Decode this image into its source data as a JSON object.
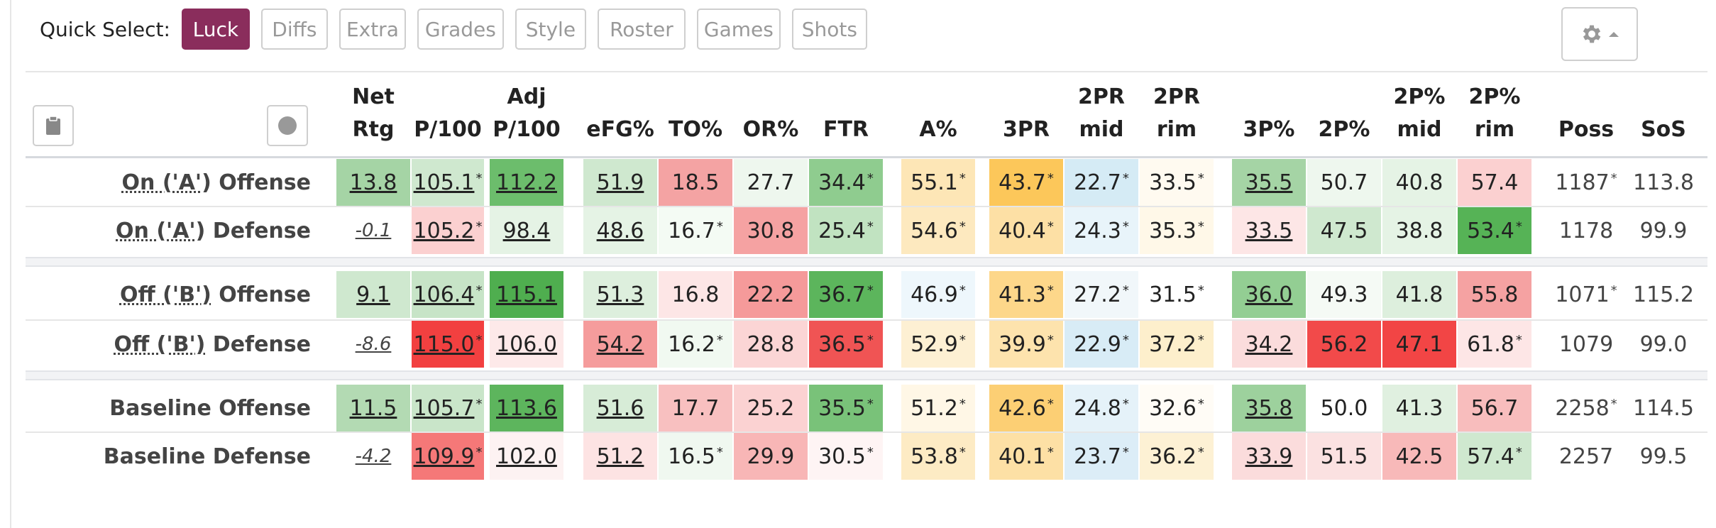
{
  "toolbar": {
    "label": "Quick Select:",
    "buttons": [
      {
        "label": "Luck",
        "active": true
      },
      {
        "label": "Diffs",
        "active": false
      },
      {
        "label": "Extra",
        "active": false
      },
      {
        "label": "Grades",
        "active": false
      },
      {
        "label": "Style",
        "active": false
      },
      {
        "label": "Roster",
        "active": false
      },
      {
        "label": "Games",
        "active": false
      },
      {
        "label": "Shots",
        "active": false
      }
    ]
  },
  "columns": [
    {
      "l1": "Net",
      "l2": "Rtg"
    },
    {
      "l1": "",
      "l2": "P/100"
    },
    {
      "l1": "Adj",
      "l2": "P/100"
    },
    {
      "l1": "",
      "l2": "eFG%"
    },
    {
      "l1": "",
      "l2": "TO%"
    },
    {
      "l1": "",
      "l2": "OR%"
    },
    {
      "l1": "",
      "l2": "FTR"
    },
    {
      "l1": "",
      "l2": "A%"
    },
    {
      "l1": "",
      "l2": "3PR"
    },
    {
      "l1": "2PR",
      "l2": "mid"
    },
    {
      "l1": "2PR",
      "l2": "rim"
    },
    {
      "l1": "",
      "l2": "3P%"
    },
    {
      "l1": "",
      "l2": "2P%"
    },
    {
      "l1": "2P%",
      "l2": "mid"
    },
    {
      "l1": "2P%",
      "l2": "rim"
    },
    {
      "l1": "",
      "l2": "Poss"
    },
    {
      "l1": "",
      "l2": "SoS"
    }
  ],
  "rows": [
    {
      "label": "On ('A') Offense",
      "label_prefix": "On ('A')",
      "label_suffix": " Offense",
      "cells": [
        {
          "v": "13.8",
          "bg": "#a5d4a5",
          "s": "u"
        },
        {
          "v": "105.1",
          "bg": "#cfe8cf",
          "s": "u",
          "star": true
        },
        {
          "v": "112.2",
          "bg": "#6cbd6c",
          "s": "u"
        },
        {
          "v": "51.9",
          "bg": "#cfe8cf",
          "s": "u"
        },
        {
          "v": "18.5",
          "bg": "#f4a3a3",
          "s": ""
        },
        {
          "v": "27.7",
          "bg": "#eef7ee",
          "s": ""
        },
        {
          "v": "34.4",
          "bg": "#8fcc8f",
          "s": "",
          "star": true
        },
        {
          "v": "55.1",
          "bg": "#fde6b6",
          "s": "",
          "star": true
        },
        {
          "v": "43.7",
          "bg": "#fcc75a",
          "s": "",
          "star": true
        },
        {
          "v": "22.7",
          "bg": "#d5ebf5",
          "s": "",
          "star": true
        },
        {
          "v": "33.5",
          "bg": "#fffaf0",
          "s": "",
          "star": true
        },
        {
          "v": "35.5",
          "bg": "#a5d4a5",
          "s": "u"
        },
        {
          "v": "50.7",
          "bg": "#eef7ee",
          "s": ""
        },
        {
          "v": "40.8",
          "bg": "#e5f3e5",
          "s": ""
        },
        {
          "v": "57.4",
          "bg": "#fbd0d0",
          "s": ""
        },
        {
          "v": "1187",
          "bg": "",
          "s": "plain",
          "star": true
        },
        {
          "v": "113.8",
          "bg": "",
          "s": "plain"
        }
      ]
    },
    {
      "label": "On ('A') Defense",
      "label_prefix": "On ('A')",
      "label_suffix": " Defense",
      "cells": [
        {
          "v": "-0.1",
          "bg": "",
          "s": "i"
        },
        {
          "v": "105.2",
          "bg": "#fbd0d0",
          "s": "u",
          "star": true
        },
        {
          "v": "98.4",
          "bg": "#e5f3e5",
          "s": "u"
        },
        {
          "v": "48.6",
          "bg": "#e5f3e5",
          "s": "u"
        },
        {
          "v": "16.7",
          "bg": "#f4fbf4",
          "s": "",
          "star": true
        },
        {
          "v": "30.8",
          "bg": "#f5a2a2",
          "s": ""
        },
        {
          "v": "25.4",
          "bg": "#c1e3c1",
          "s": "",
          "star": true
        },
        {
          "v": "54.6",
          "bg": "#fde9bf",
          "s": "",
          "star": true
        },
        {
          "v": "40.4",
          "bg": "#fde0a5",
          "s": "",
          "star": true
        },
        {
          "v": "24.3",
          "bg": "#e8f4fa",
          "s": "",
          "star": true
        },
        {
          "v": "35.3",
          "bg": "#fff8e8",
          "s": "",
          "star": true
        },
        {
          "v": "33.5",
          "bg": "#fde6e6",
          "s": "u"
        },
        {
          "v": "47.5",
          "bg": "#cfe8cf",
          "s": ""
        },
        {
          "v": "38.8",
          "bg": "#e5f3e5",
          "s": ""
        },
        {
          "v": "53.4",
          "bg": "#56b356",
          "s": "",
          "star": true
        },
        {
          "v": "1178",
          "bg": "",
          "s": "plain"
        },
        {
          "v": "99.9",
          "bg": "",
          "s": "plain"
        }
      ]
    },
    {
      "label": "Off ('B') Offense",
      "label_prefix": "Off ('B')",
      "label_suffix": " Offense",
      "cells": [
        {
          "v": "9.1",
          "bg": "#cfe8cf",
          "s": "u"
        },
        {
          "v": "106.4",
          "bg": "#c7e4c7",
          "s": "u",
          "star": true
        },
        {
          "v": "115.1",
          "bg": "#4fae4f",
          "s": "u"
        },
        {
          "v": "51.3",
          "bg": "#ddefdd",
          "s": "u"
        },
        {
          "v": "16.8",
          "bg": "#fde6e6",
          "s": ""
        },
        {
          "v": "22.2",
          "bg": "#f59a9a",
          "s": ""
        },
        {
          "v": "36.7",
          "bg": "#5cb55c",
          "s": "",
          "star": true
        },
        {
          "v": "46.9",
          "bg": "#eef7fc",
          "s": "",
          "star": true
        },
        {
          "v": "41.3",
          "bg": "#fdd78a",
          "s": "",
          "star": true
        },
        {
          "v": "27.2",
          "bg": "#f1f7fa",
          "s": "",
          "star": true
        },
        {
          "v": "31.5",
          "bg": "#ffffff",
          "s": "",
          "star": true
        },
        {
          "v": "36.0",
          "bg": "#93ce93",
          "s": "u"
        },
        {
          "v": "49.3",
          "bg": "#f5faf5",
          "s": ""
        },
        {
          "v": "41.8",
          "bg": "#ddefdd",
          "s": ""
        },
        {
          "v": "55.8",
          "bg": "#f5a2a2",
          "s": ""
        },
        {
          "v": "1071",
          "bg": "",
          "s": "plain",
          "star": true
        },
        {
          "v": "115.2",
          "bg": "",
          "s": "plain"
        }
      ]
    },
    {
      "label": "Off ('B') Defense",
      "label_prefix": "Off ('B')",
      "label_suffix": " Defense",
      "cells": [
        {
          "v": "-8.6",
          "bg": "",
          "s": "i"
        },
        {
          "v": "115.0",
          "bg": "#f24040",
          "s": "u",
          "star": true
        },
        {
          "v": "106.0",
          "bg": "#fde9e9",
          "s": "u"
        },
        {
          "v": "54.2",
          "bg": "#f59c9c",
          "s": "u"
        },
        {
          "v": "16.2",
          "bg": "#f1f9f1",
          "s": "",
          "star": true
        },
        {
          "v": "28.8",
          "bg": "#fbd5d5",
          "s": ""
        },
        {
          "v": "36.5",
          "bg": "#f05454",
          "s": "",
          "star": true
        },
        {
          "v": "52.9",
          "bg": "#fdf0d3",
          "s": "",
          "star": true
        },
        {
          "v": "39.9",
          "bg": "#fde3ad",
          "s": "",
          "star": true
        },
        {
          "v": "22.9",
          "bg": "#d8ecf6",
          "s": "",
          "star": true
        },
        {
          "v": "37.2",
          "bg": "#fdefcc",
          "s": "",
          "star": true
        },
        {
          "v": "34.2",
          "bg": "#fbdcdc",
          "s": "u"
        },
        {
          "v": "56.2",
          "bg": "#f24a4a",
          "s": ""
        },
        {
          "v": "47.1",
          "bg": "#f24545",
          "s": ""
        },
        {
          "v": "61.8",
          "bg": "#fde6e6",
          "s": "",
          "star": true
        },
        {
          "v": "1079",
          "bg": "",
          "s": "plain"
        },
        {
          "v": "99.0",
          "bg": "",
          "s": "plain"
        }
      ]
    },
    {
      "label": "Baseline Offense",
      "label_prefix": "",
      "label_suffix": "Baseline Offense",
      "cells": [
        {
          "v": "11.5",
          "bg": "#b3dab3",
          "s": "u"
        },
        {
          "v": "105.7",
          "bg": "#c9e5c9",
          "s": "u",
          "star": true
        },
        {
          "v": "113.6",
          "bg": "#5db55d",
          "s": "u"
        },
        {
          "v": "51.6",
          "bg": "#d7ecd7",
          "s": "u"
        },
        {
          "v": "17.7",
          "bg": "#f8c0c0",
          "s": ""
        },
        {
          "v": "25.2",
          "bg": "#fbd2d2",
          "s": ""
        },
        {
          "v": "35.5",
          "bg": "#79c279",
          "s": "",
          "star": true
        },
        {
          "v": "51.2",
          "bg": "#fff7e6",
          "s": "",
          "star": true
        },
        {
          "v": "42.6",
          "bg": "#fccf74",
          "s": "",
          "star": true
        },
        {
          "v": "24.8",
          "bg": "#e5f2f9",
          "s": "",
          "star": true
        },
        {
          "v": "32.6",
          "bg": "#fffcf6",
          "s": "",
          "star": true
        },
        {
          "v": "35.8",
          "bg": "#9dd19d",
          "s": "u"
        },
        {
          "v": "50.0",
          "bg": "#ffffff",
          "s": ""
        },
        {
          "v": "41.3",
          "bg": "#e0f0e0",
          "s": ""
        },
        {
          "v": "56.7",
          "bg": "#f8bdbd",
          "s": ""
        },
        {
          "v": "2258",
          "bg": "",
          "s": "plain",
          "star": true
        },
        {
          "v": "114.5",
          "bg": "",
          "s": "plain"
        }
      ]
    },
    {
      "label": "Baseline Defense",
      "label_prefix": "",
      "label_suffix": "Baseline Defense",
      "cells": [
        {
          "v": "-4.2",
          "bg": "",
          "s": "i"
        },
        {
          "v": "109.9",
          "bg": "#f57878",
          "s": "u",
          "star": true
        },
        {
          "v": "102.0",
          "bg": "#fdf2f2",
          "s": "u"
        },
        {
          "v": "51.2",
          "bg": "#fde3e3",
          "s": "u"
        },
        {
          "v": "16.5",
          "bg": "#f0f8f0",
          "s": "",
          "star": true
        },
        {
          "v": "29.9",
          "bg": "#f8b6b6",
          "s": ""
        },
        {
          "v": "30.5",
          "bg": "#fef4f4",
          "s": "",
          "star": true
        },
        {
          "v": "53.8",
          "bg": "#fdebc4",
          "s": "",
          "star": true
        },
        {
          "v": "40.1",
          "bg": "#fde0a5",
          "s": "",
          "star": true
        },
        {
          "v": "23.7",
          "bg": "#dcedf7",
          "s": "",
          "star": true
        },
        {
          "v": "36.2",
          "bg": "#fdf1d4",
          "s": "",
          "star": true
        },
        {
          "v": "33.9",
          "bg": "#fbdcdc",
          "s": "u"
        },
        {
          "v": "51.5",
          "bg": "#fbe1e1",
          "s": ""
        },
        {
          "v": "42.5",
          "bg": "#f8b9b9",
          "s": ""
        },
        {
          "v": "57.4",
          "bg": "#cfe8cf",
          "s": "",
          "star": true
        },
        {
          "v": "2257",
          "bg": "",
          "s": "plain"
        },
        {
          "v": "99.5",
          "bg": "",
          "s": "plain"
        }
      ]
    }
  ]
}
